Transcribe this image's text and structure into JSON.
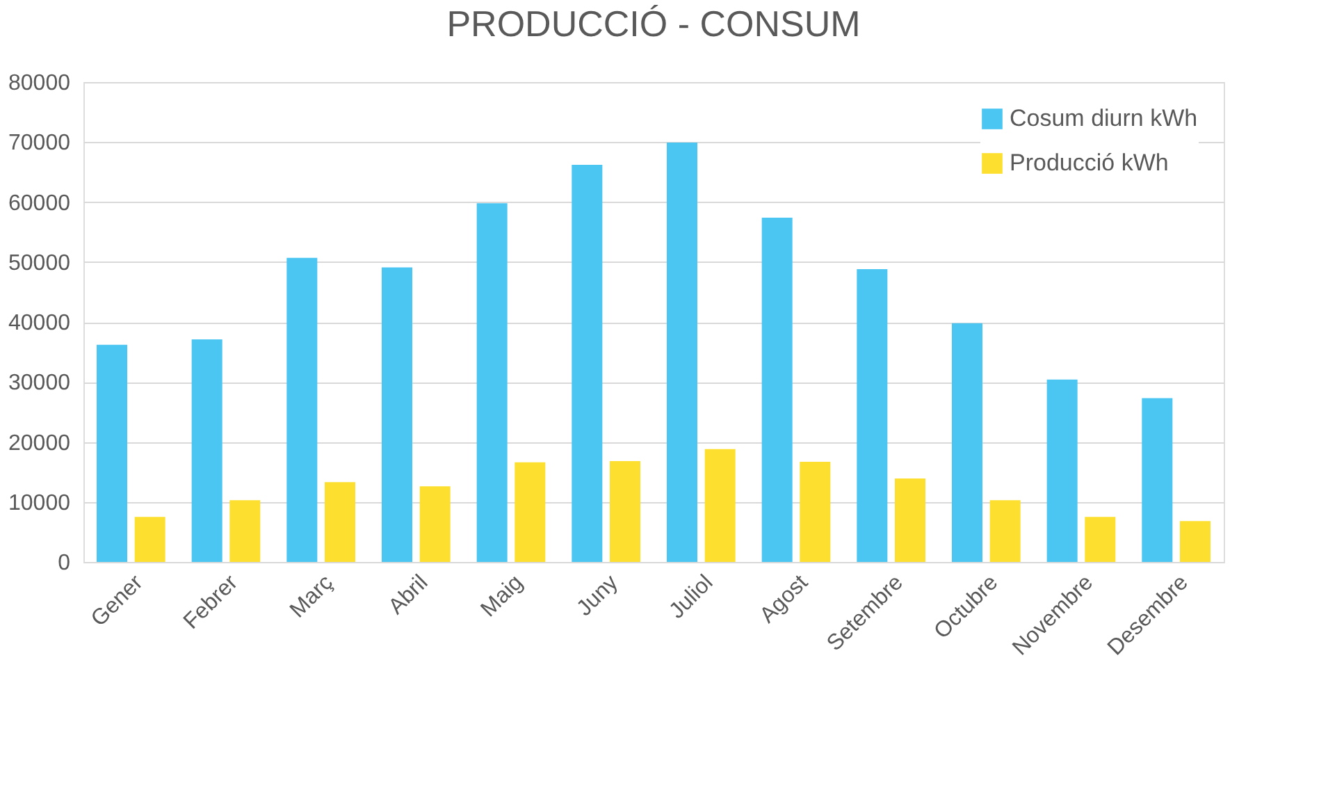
{
  "chart_data": {
    "type": "bar",
    "title": "PRODUCCIÓ - CONSUM",
    "categories": [
      "Gener",
      "Febrer",
      "Març",
      "Abril",
      "Maig",
      "Juny",
      "Juliol",
      "Agost",
      "Setembre",
      "Octubre",
      "Novembre",
      "Desembre"
    ],
    "series": [
      {
        "name": "Cosum diurn kWh",
        "color": "#4bc6f3",
        "values": [
          36200,
          37100,
          50700,
          49100,
          59800,
          66200,
          69900,
          57400,
          48800,
          39800,
          30400,
          27300
        ]
      },
      {
        "name": "Producció kWh",
        "color": "#fde02f",
        "values": [
          7500,
          10300,
          13300,
          12600,
          16600,
          16800,
          18800,
          16700,
          13900,
          10300,
          7500,
          6800
        ]
      }
    ],
    "ylim": [
      0,
      80000
    ],
    "yticks": [
      0,
      10000,
      20000,
      30000,
      40000,
      50000,
      60000,
      70000,
      80000
    ],
    "grid": "y",
    "legend": "top right"
  }
}
